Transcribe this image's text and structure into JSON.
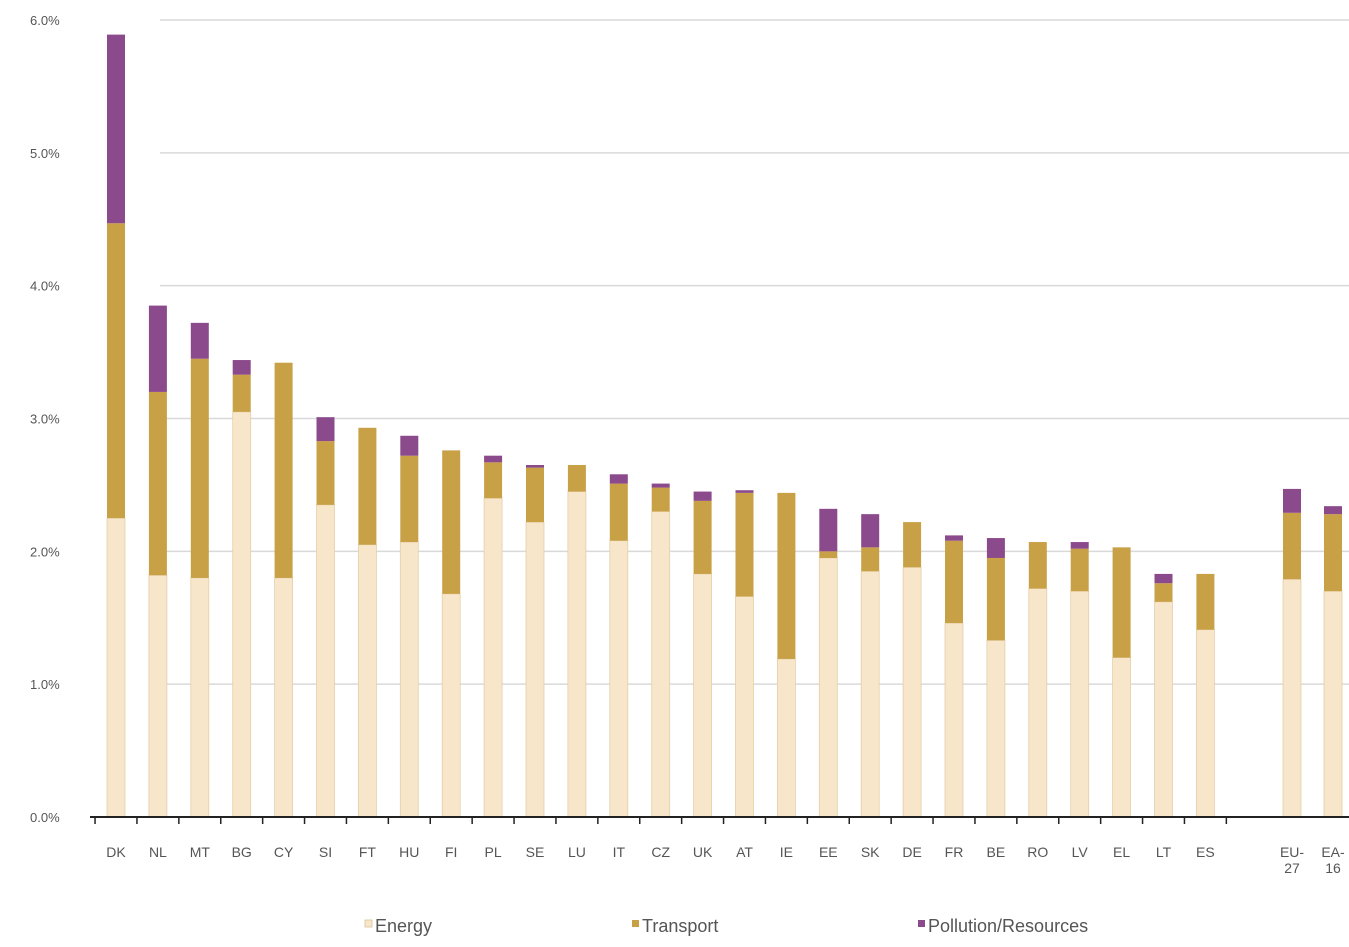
{
  "chart_data": {
    "type": "bar",
    "stacked": true,
    "categories": [
      "DK",
      "NL",
      "MT",
      "BG",
      "CY",
      "SI",
      "FT",
      "HU",
      "FI",
      "PL",
      "SE",
      "LU",
      "IT",
      "CZ",
      "UK",
      "AT",
      "IE",
      "EE",
      "SK",
      "DE",
      "FR",
      "BE",
      "RO",
      "LV",
      "EL",
      "LT",
      "ES",
      "EU-27",
      "EA-16"
    ],
    "category_lines": [
      [
        "DK"
      ],
      [
        "NL"
      ],
      [
        "MT"
      ],
      [
        "BG"
      ],
      [
        "CY"
      ],
      [
        "SI"
      ],
      [
        "FT"
      ],
      [
        "HU"
      ],
      [
        "FI"
      ],
      [
        "PL"
      ],
      [
        "SE"
      ],
      [
        "LU"
      ],
      [
        "IT"
      ],
      [
        "CZ"
      ],
      [
        "UK"
      ],
      [
        "AT"
      ],
      [
        "IE"
      ],
      [
        "EE"
      ],
      [
        "SK"
      ],
      [
        "DE"
      ],
      [
        "FR"
      ],
      [
        "BE"
      ],
      [
        "RO"
      ],
      [
        "LV"
      ],
      [
        "EL"
      ],
      [
        "LT"
      ],
      [
        "ES"
      ],
      [
        "EU-",
        "27"
      ],
      [
        "EA-",
        "16"
      ]
    ],
    "series": [
      {
        "name": "Energy",
        "color": "#f7e6c9",
        "values": [
          2.25,
          1.82,
          1.8,
          3.05,
          1.8,
          2.35,
          2.05,
          2.07,
          1.68,
          2.4,
          2.22,
          2.45,
          2.08,
          2.3,
          1.83,
          1.66,
          1.19,
          1.95,
          1.85,
          1.88,
          1.46,
          1.33,
          1.72,
          1.7,
          1.2,
          1.62,
          1.41,
          1.79,
          1.7
        ]
      },
      {
        "name": "Transport",
        "color": "#c8a046",
        "values": [
          2.22,
          1.38,
          1.65,
          0.28,
          1.62,
          0.48,
          0.88,
          0.65,
          1.08,
          0.27,
          0.41,
          0.2,
          0.43,
          0.18,
          0.55,
          0.78,
          1.25,
          0.05,
          0.18,
          0.34,
          0.62,
          0.62,
          0.35,
          0.32,
          0.83,
          0.14,
          0.42,
          0.5,
          0.58
        ]
      },
      {
        "name": "Pollution/Resources",
        "color": "#8b4a8c",
        "values": [
          1.42,
          0.65,
          0.27,
          0.11,
          0.0,
          0.18,
          0.0,
          0.15,
          0.0,
          0.05,
          0.02,
          0.0,
          0.07,
          0.03,
          0.07,
          0.02,
          0.0,
          0.32,
          0.25,
          0.0,
          0.04,
          0.15,
          0.0,
          0.05,
          0.0,
          0.07,
          0.0,
          0.18,
          0.06
        ]
      }
    ],
    "y_ticks": [
      0.0,
      1.0,
      2.0,
      3.0,
      4.0,
      5.0,
      6.0
    ],
    "y_tick_labels": [
      "0.0%",
      "1.0%",
      "2.0%",
      "3.0%",
      "4.0%",
      "5.0%",
      "6.0%"
    ],
    "ylim": [
      0,
      6.0
    ],
    "grid": true,
    "legend": {
      "position": "bottom",
      "labels": [
        "Energy",
        "Transport",
        "Pollution/Resources"
      ]
    },
    "title": "",
    "xlabel": "",
    "ylabel": ""
  }
}
